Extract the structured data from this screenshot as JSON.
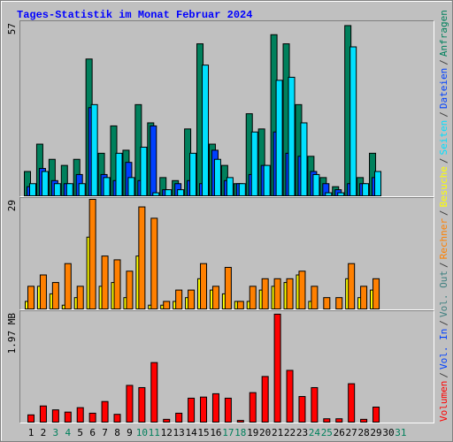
{
  "chart_data": [
    {
      "type": "bar",
      "title": "Tages-Statistik im Monat Februar 2024",
      "ylim": [
        0,
        57
      ],
      "yticks": [
        57
      ],
      "series": [
        {
          "name": "Anfragen",
          "color": "#00805c",
          "values": [
            8,
            17,
            12,
            10,
            12,
            45,
            14,
            23,
            15,
            30,
            24,
            6,
            5,
            22,
            50,
            17,
            10,
            4,
            27,
            22,
            53,
            50,
            30,
            13,
            6,
            3,
            56,
            6,
            14,
            null,
            null
          ]
        },
        {
          "name": "Dateien",
          "color": "#0040ff",
          "values": [
            3,
            9,
            5,
            4,
            7,
            29,
            7,
            5,
            11,
            5,
            23,
            2,
            4,
            5,
            4,
            15,
            5,
            4,
            7,
            10,
            21,
            14,
            13,
            8,
            4,
            2,
            4,
            4,
            6,
            null,
            null
          ]
        },
        {
          "name": "Seiten",
          "color": "#00e0ff",
          "values": [
            4,
            8,
            4,
            4,
            4,
            30,
            6,
            14,
            6,
            16,
            1,
            2,
            2,
            14,
            43,
            12,
            6,
            4,
            21,
            10,
            38,
            39,
            24,
            7,
            1,
            1,
            49,
            4,
            8,
            null,
            null
          ]
        }
      ]
    },
    {
      "type": "bar",
      "ylim": [
        0,
        29
      ],
      "yticks": [
        29
      ],
      "series": [
        {
          "name": "Besuche",
          "color": "#ffff00",
          "values": [
            2,
            6,
            4,
            1,
            3,
            19,
            6,
            7,
            3,
            14,
            1,
            1,
            2,
            3,
            8,
            5,
            4,
            2,
            2,
            5,
            6,
            7,
            9,
            2,
            0,
            0,
            8,
            3,
            5,
            null,
            null
          ]
        },
        {
          "name": "Rechner",
          "color": "#ff8000",
          "values": [
            6,
            9,
            7,
            12,
            6,
            29,
            14,
            13,
            10,
            27,
            24,
            2,
            5,
            5,
            12,
            6,
            11,
            2,
            6,
            8,
            8,
            8,
            10,
            6,
            3,
            3,
            12,
            6,
            8,
            null,
            null
          ]
        }
      ]
    },
    {
      "type": "bar",
      "categories": [
        "1",
        "2",
        "3",
        "4",
        "5",
        "6",
        "7",
        "8",
        "9",
        "10",
        "11",
        "12",
        "13",
        "14",
        "15",
        "16",
        "17",
        "18",
        "19",
        "20",
        "21",
        "22",
        "23",
        "24",
        "25",
        "26",
        "27",
        "28",
        "29",
        "30",
        "31"
      ],
      "category_colors": [
        "#000000",
        "#000000",
        "#00805c",
        "#00805c",
        "#000000",
        "#000000",
        "#000000",
        "#000000",
        "#000000",
        "#00805c",
        "#00805c",
        "#000000",
        "#000000",
        "#000000",
        "#000000",
        "#000000",
        "#00805c",
        "#00805c",
        "#000000",
        "#000000",
        "#000000",
        "#000000",
        "#000000",
        "#00805c",
        "#00805c",
        "#000000",
        "#000000",
        "#000000",
        "#000000",
        "#000000",
        "#00805c"
      ],
      "ylim": [
        0,
        1.97
      ],
      "yticks": [
        {
          "value": 1.97,
          "label": "1.97 MB"
        }
      ],
      "legend_extra": [
        {
          "name": "Vol. Out",
          "color": "#408080"
        },
        {
          "name": "Vol. In",
          "color": "#0040ff"
        }
      ],
      "series": [
        {
          "name": "Volumen",
          "color": "#ff0000",
          "values": [
            0.13,
            0.29,
            0.22,
            0.18,
            0.26,
            0.16,
            0.37,
            0.14,
            0.66,
            0.62,
            1.07,
            0.05,
            0.16,
            0.43,
            0.45,
            0.51,
            0.43,
            0.03,
            0.53,
            0.82,
            1.94,
            0.93,
            0.46,
            0.62,
            0.06,
            0.06,
            0.69,
            0.05,
            0.27,
            null,
            null
          ]
        }
      ]
    },
    {
      "type": "legend",
      "separator": "/",
      "separator_color": "#404040"
    }
  ]
}
